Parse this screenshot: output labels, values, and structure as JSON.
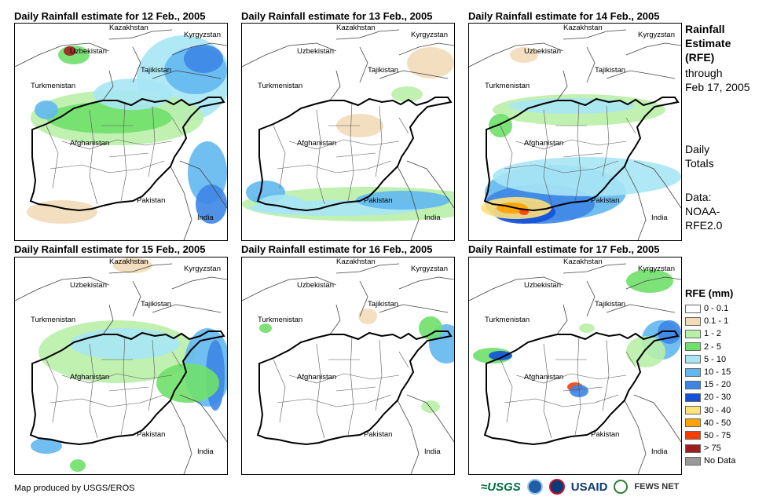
{
  "panels": [
    {
      "title": "Daily Rainfall estimate for 12 Feb., 2005",
      "labels": {
        "kazakhstan": "Kazakhstan",
        "uzbekistan": "Uzbekistan",
        "kyrgyzstan": "Kyrgyzstan",
        "tajikistan": "Tajikistan",
        "turkmenistan": "Turkmenistan",
        "afghanistan": "Afghanistan",
        "pakistan": "Pakistan",
        "india": "India"
      }
    },
    {
      "title": "Daily Rainfall estimate for 13 Feb., 2005",
      "labels": {
        "kazakhstan": "Kazakhstan",
        "uzbekistan": "Uzbekistan",
        "kyrgyzstan": "Kyrgyzstan",
        "tajikistan": "Tajikistan",
        "turkmenistan": "Turkmenistan",
        "afghanistan": "Afghanistan",
        "pakistan": "Pakistan",
        "india": "India"
      }
    },
    {
      "title": "Daily Rainfall estimate for 14 Feb., 2005",
      "labels": {
        "kazakhstan": "Kazakhstan",
        "uzbekistan": "Uzbekistan",
        "kyrgyzstan": "Kyrgyzstan",
        "tajikistan": "Tajikistan",
        "turkmenistan": "Turkmenistan",
        "afghanistan": "Afghanistan",
        "pakistan": "Pakistan",
        "india": "India"
      }
    },
    {
      "title": "Daily Rainfall estimate for 15 Feb., 2005",
      "labels": {
        "kazakhstan": "Kazakhstan",
        "uzbekistan": "Uzbekistan",
        "kyrgyzstan": "Kyrgyzstan",
        "tajikistan": "Tajikistan",
        "turkmenistan": "Turkmenistan",
        "afghanistan": "Afghanistan",
        "pakistan": "Pakistan",
        "india": "India"
      }
    },
    {
      "title": "Daily Rainfall estimate for 16 Feb., 2005",
      "labels": {
        "kazakhstan": "Kazakhstan",
        "uzbekistan": "Uzbekistan",
        "kyrgyzstan": "Kyrgyzstan",
        "tajikistan": "Tajikistan",
        "turkmenistan": "Turkmenistan",
        "afghanistan": "Afghanistan",
        "pakistan": "Pakistan",
        "india": "India"
      }
    },
    {
      "title": "Daily Rainfall estimate for 17 Feb., 2005",
      "labels": {
        "kazakhstan": "Kazakhstan",
        "uzbekistan": "Uzbekistan",
        "kyrgyzstan": "Kyrgyzstan",
        "tajikistan": "Tajikistan",
        "turkmenistan": "Turkmenistan",
        "afghanistan": "Afghanistan",
        "pakistan": "Pakistan",
        "india": "India"
      }
    }
  ],
  "side": {
    "title_lines": [
      "Rainfall",
      "Estimate",
      "(RFE)"
    ],
    "through_lines": [
      "through",
      "Feb 17, 2005"
    ],
    "totals_lines": [
      "Daily",
      "Totals"
    ],
    "data_lines": [
      "Data:",
      "NOAA-",
      "RFE2.0"
    ]
  },
  "legend": {
    "title": "RFE (mm)",
    "items": [
      {
        "label": "0 - 0.1",
        "color": "#ffffff"
      },
      {
        "label": "0.1 - 1",
        "color": "#f2dcb8"
      },
      {
        "label": "1 - 2",
        "color": "#b9f0a8"
      },
      {
        "label": "2 - 5",
        "color": "#6fe06a"
      },
      {
        "label": "5 - 10",
        "color": "#a9e6f5"
      },
      {
        "label": "10 - 15",
        "color": "#62b8f0"
      },
      {
        "label": "15 - 20",
        "color": "#3d86e6"
      },
      {
        "label": "20 - 30",
        "color": "#1450d8"
      },
      {
        "label": "30 - 40",
        "color": "#ffe27a"
      },
      {
        "label": "40 - 50",
        "color": "#ffa200"
      },
      {
        "label": "50 - 75",
        "color": "#ff3c00"
      },
      {
        "label": "> 75",
        "color": "#a01e1e"
      },
      {
        "label": "No Data",
        "color": "#999999"
      }
    ]
  },
  "footer": {
    "credit": "Map produced by USGS/EROS",
    "logos": {
      "usgs": "≈USGS",
      "usaid": "USAID",
      "fews": "FEWS NET"
    }
  },
  "colors": {
    "border": "#000000",
    "admin": "#555555",
    "country": "#444444"
  }
}
